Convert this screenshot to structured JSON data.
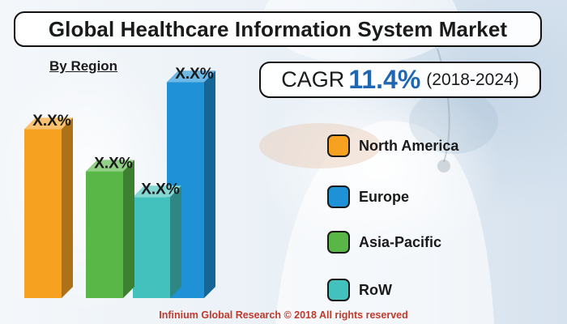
{
  "title": "Global Healthcare Information System Market",
  "subtitle": "By Region",
  "cagr": {
    "label": "CAGR",
    "value": "11.4%",
    "period": "(2018-2024)",
    "value_color": "#1f67b1"
  },
  "chart_data": {
    "type": "bar",
    "title": "Global Healthcare Information System Market",
    "subtitle": "By Region",
    "categories": [
      "North America",
      "Asia-Pacific",
      "RoW",
      "Europe"
    ],
    "values": [
      72,
      54,
      43,
      92
    ],
    "data_labels": [
      "X.X%",
      "X.X%",
      "X.X%",
      "X.X%"
    ],
    "colors": [
      "#f7a121",
      "#58b747",
      "#43c1bd",
      "#1e91d7"
    ],
    "ylim": [
      0,
      100
    ],
    "grid": false,
    "legend_position": "right"
  },
  "legend": [
    {
      "label": "North America",
      "color": "#f7a121"
    },
    {
      "label": "Europe",
      "color": "#1e91d7"
    },
    {
      "label": "Asia-Pacific",
      "color": "#58b747"
    },
    {
      "label": "RoW",
      "color": "#43c1bd"
    }
  ],
  "footer": "Infinium Global Research © 2018 All rights reserved"
}
